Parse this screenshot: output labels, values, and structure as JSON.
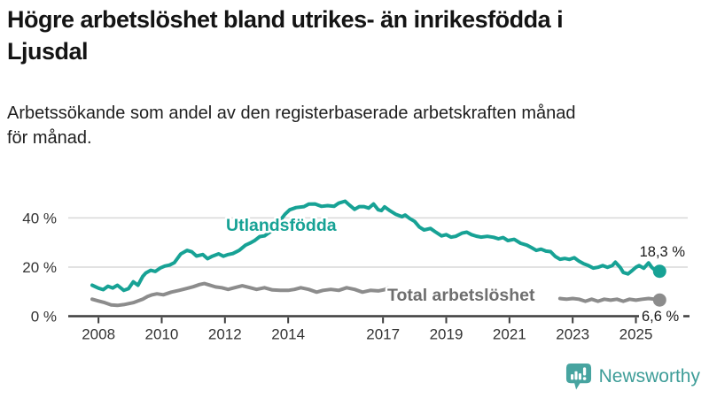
{
  "title_lines": [
    "Högre arbetslöshet bland utrikes- än inrikesfödda i",
    "Ljusdal"
  ],
  "subtitle_lines": [
    "Arbetssökande som andel av den registerbaserade arbetskraften månad",
    "för månad."
  ],
  "brand": {
    "name": "Newsworthy",
    "icon": "newsworthy-speech-bubble-bar-chart-icon",
    "color": "#45a39e"
  },
  "colors": {
    "foreign_born_line": "#17a295",
    "total_line": "#8c8c8c",
    "total_label": "#6e6e6e",
    "axis": "#3d3d3d",
    "grid": "#d9d9d9",
    "tick_text": "#333333",
    "value_text": "#1a1a1a"
  },
  "chart_data": {
    "type": "line",
    "title": "Högre arbetslöshet bland utrikes- än inrikesfödda i Ljusdal",
    "subtitle": "Arbetssökande som andel av den registerbaserade arbetskraften månad för månad.",
    "unit": "%",
    "grid": "horizontal",
    "x_axis": {
      "ticks": [
        2008,
        2010,
        2012,
        2014,
        2017,
        2019,
        2021,
        2023,
        2025
      ],
      "tick_labels": [
        "2008",
        "2010",
        "2012",
        "2014",
        "2017",
        "2019",
        "2021",
        "2023",
        "2025"
      ],
      "range": [
        2007.8,
        2025.9
      ]
    },
    "y_axis": {
      "ticks": [
        0,
        20,
        40
      ],
      "tick_labels": [
        "0 %",
        "20 %",
        "40 %"
      ],
      "range": [
        0,
        48
      ]
    },
    "series": [
      {
        "name": "Utlandsfödda",
        "color": "#17a295",
        "label_color": "#17a295",
        "end_label": "18,3 %",
        "end_value": 18.3,
        "points": [
          [
            2007.8,
            12.6
          ],
          [
            2008.0,
            11.4
          ],
          [
            2008.15,
            10.8
          ],
          [
            2008.3,
            12.2
          ],
          [
            2008.45,
            11.5
          ],
          [
            2008.6,
            12.6
          ],
          [
            2008.8,
            10.5
          ],
          [
            2008.95,
            11.2
          ],
          [
            2009.1,
            14.0
          ],
          [
            2009.25,
            12.6
          ],
          [
            2009.4,
            16.2
          ],
          [
            2009.5,
            17.6
          ],
          [
            2009.65,
            18.7
          ],
          [
            2009.8,
            18.2
          ],
          [
            2009.95,
            19.6
          ],
          [
            2010.1,
            20.4
          ],
          [
            2010.25,
            20.8
          ],
          [
            2010.4,
            21.8
          ],
          [
            2010.6,
            25.3
          ],
          [
            2010.8,
            26.8
          ],
          [
            2010.95,
            26.2
          ],
          [
            2011.1,
            24.5
          ],
          [
            2011.3,
            25.1
          ],
          [
            2011.45,
            23.4
          ],
          [
            2011.6,
            24.4
          ],
          [
            2011.8,
            25.4
          ],
          [
            2011.95,
            24.4
          ],
          [
            2012.1,
            25.1
          ],
          [
            2012.25,
            25.5
          ],
          [
            2012.45,
            26.8
          ],
          [
            2012.65,
            28.9
          ],
          [
            2012.8,
            29.8
          ],
          [
            2012.95,
            30.9
          ],
          [
            2013.1,
            32.4
          ],
          [
            2013.25,
            32.7
          ],
          [
            2013.45,
            34.5
          ],
          [
            2013.6,
            36.5
          ],
          [
            2013.75,
            39.0
          ],
          [
            2013.9,
            41.5
          ],
          [
            2014.05,
            43.3
          ],
          [
            2014.25,
            44.2
          ],
          [
            2014.5,
            44.6
          ],
          [
            2014.65,
            45.6
          ],
          [
            2014.85,
            45.7
          ],
          [
            2015.05,
            44.7
          ],
          [
            2015.25,
            45.0
          ],
          [
            2015.45,
            44.7
          ],
          [
            2015.6,
            46.0
          ],
          [
            2015.8,
            46.8
          ],
          [
            2015.95,
            45.1
          ],
          [
            2016.1,
            43.5
          ],
          [
            2016.25,
            44.6
          ],
          [
            2016.4,
            44.6
          ],
          [
            2016.55,
            44.0
          ],
          [
            2016.7,
            45.7
          ],
          [
            2016.85,
            43.3
          ],
          [
            2016.95,
            43.0
          ],
          [
            2017.05,
            44.5
          ],
          [
            2017.2,
            43.1
          ],
          [
            2017.4,
            41.5
          ],
          [
            2017.6,
            40.5
          ],
          [
            2017.7,
            41.2
          ],
          [
            2017.85,
            39.7
          ],
          [
            2018.0,
            38.6
          ],
          [
            2018.15,
            36.3
          ],
          [
            2018.3,
            35.1
          ],
          [
            2018.5,
            35.7
          ],
          [
            2018.65,
            34.4
          ],
          [
            2018.85,
            32.7
          ],
          [
            2019.0,
            33.2
          ],
          [
            2019.15,
            32.2
          ],
          [
            2019.3,
            32.5
          ],
          [
            2019.5,
            33.8
          ],
          [
            2019.65,
            34.2
          ],
          [
            2019.8,
            33.2
          ],
          [
            2019.95,
            32.6
          ],
          [
            2020.1,
            32.2
          ],
          [
            2020.3,
            32.5
          ],
          [
            2020.5,
            32.1
          ],
          [
            2020.65,
            31.5
          ],
          [
            2020.8,
            32.0
          ],
          [
            2020.95,
            30.8
          ],
          [
            2021.15,
            31.3
          ],
          [
            2021.35,
            29.7
          ],
          [
            2021.55,
            28.9
          ],
          [
            2021.7,
            27.9
          ],
          [
            2021.85,
            26.8
          ],
          [
            2022.0,
            27.3
          ],
          [
            2022.15,
            26.5
          ],
          [
            2022.3,
            26.3
          ],
          [
            2022.45,
            24.3
          ],
          [
            2022.6,
            23.2
          ],
          [
            2022.75,
            23.5
          ],
          [
            2022.9,
            23.1
          ],
          [
            2023.05,
            23.8
          ],
          [
            2023.2,
            22.4
          ],
          [
            2023.35,
            21.3
          ],
          [
            2023.5,
            20.6
          ],
          [
            2023.65,
            19.6
          ],
          [
            2023.8,
            19.9
          ],
          [
            2023.95,
            20.6
          ],
          [
            2024.1,
            19.9
          ],
          [
            2024.25,
            20.6
          ],
          [
            2024.35,
            22.0
          ],
          [
            2024.5,
            19.9
          ],
          [
            2024.6,
            17.8
          ],
          [
            2024.75,
            17.2
          ],
          [
            2024.9,
            18.8
          ],
          [
            2025.0,
            19.9
          ],
          [
            2025.1,
            20.6
          ],
          [
            2025.25,
            19.5
          ],
          [
            2025.4,
            21.7
          ],
          [
            2025.5,
            19.9
          ],
          [
            2025.6,
            18.8
          ],
          [
            2025.75,
            18.3
          ]
        ]
      },
      {
        "name": "Total arbetslöshet",
        "color": "#8c8c8c",
        "label_color": "#6e6e6e",
        "end_label": "6,6 %",
        "end_value": 6.6,
        "points": [
          [
            2007.8,
            6.9
          ],
          [
            2008.0,
            6.2
          ],
          [
            2008.2,
            5.5
          ],
          [
            2008.4,
            4.6
          ],
          [
            2008.6,
            4.4
          ],
          [
            2008.8,
            4.7
          ],
          [
            2008.95,
            5.1
          ],
          [
            2009.1,
            5.5
          ],
          [
            2009.25,
            6.2
          ],
          [
            2009.4,
            6.9
          ],
          [
            2009.55,
            8.0
          ],
          [
            2009.7,
            8.7
          ],
          [
            2009.85,
            9.1
          ],
          [
            2010.05,
            8.7
          ],
          [
            2010.3,
            9.8
          ],
          [
            2010.55,
            10.5
          ],
          [
            2010.8,
            11.3
          ],
          [
            2011.0,
            12.0
          ],
          [
            2011.2,
            12.9
          ],
          [
            2011.35,
            13.3
          ],
          [
            2011.5,
            12.7
          ],
          [
            2011.7,
            11.9
          ],
          [
            2011.9,
            11.6
          ],
          [
            2012.1,
            10.9
          ],
          [
            2012.3,
            11.6
          ],
          [
            2012.55,
            12.4
          ],
          [
            2012.8,
            11.6
          ],
          [
            2013.0,
            10.9
          ],
          [
            2013.25,
            11.6
          ],
          [
            2013.5,
            10.7
          ],
          [
            2013.75,
            10.5
          ],
          [
            2014.0,
            10.5
          ],
          [
            2014.2,
            10.9
          ],
          [
            2014.4,
            11.6
          ],
          [
            2014.65,
            10.9
          ],
          [
            2014.9,
            9.8
          ],
          [
            2015.1,
            10.5
          ],
          [
            2015.35,
            10.9
          ],
          [
            2015.6,
            10.5
          ],
          [
            2015.85,
            11.6
          ],
          [
            2016.1,
            10.9
          ],
          [
            2016.35,
            9.8
          ],
          [
            2016.6,
            10.5
          ],
          [
            2016.85,
            10.3
          ],
          [
            2017.05,
            10.8
          ],
          [
            2017.15,
            11.4
          ],
          [
            2017.3,
            10.2
          ],
          [
            2017.6,
            9.8
          ],
          [
            2017.9,
            10.0
          ],
          [
            2018.2,
            9.7
          ],
          [
            2018.5,
            9.4
          ],
          [
            2018.8,
            9.7
          ],
          [
            2019.1,
            9.3
          ],
          [
            2019.4,
            9.0
          ],
          [
            2019.7,
            9.3
          ],
          [
            2020.0,
            9.8
          ],
          [
            2020.3,
            10.2
          ],
          [
            2020.6,
            9.8
          ],
          [
            2020.9,
            9.3
          ],
          [
            2021.2,
            8.9
          ],
          [
            2021.5,
            8.5
          ],
          [
            2021.8,
            8.1
          ],
          [
            2022.1,
            7.7
          ],
          [
            2022.4,
            7.3
          ],
          [
            2022.6,
            7.2
          ],
          [
            2022.8,
            6.9
          ],
          [
            2023.0,
            7.2
          ],
          [
            2023.2,
            6.9
          ],
          [
            2023.4,
            6.1
          ],
          [
            2023.6,
            6.9
          ],
          [
            2023.8,
            6.1
          ],
          [
            2024.0,
            6.9
          ],
          [
            2024.2,
            6.5
          ],
          [
            2024.4,
            6.9
          ],
          [
            2024.6,
            6.1
          ],
          [
            2024.8,
            6.9
          ],
          [
            2025.0,
            6.5
          ],
          [
            2025.2,
            6.9
          ],
          [
            2025.4,
            7.2
          ],
          [
            2025.6,
            6.9
          ],
          [
            2025.75,
            6.6
          ]
        ]
      }
    ],
    "legend_position": "inline-labels"
  }
}
